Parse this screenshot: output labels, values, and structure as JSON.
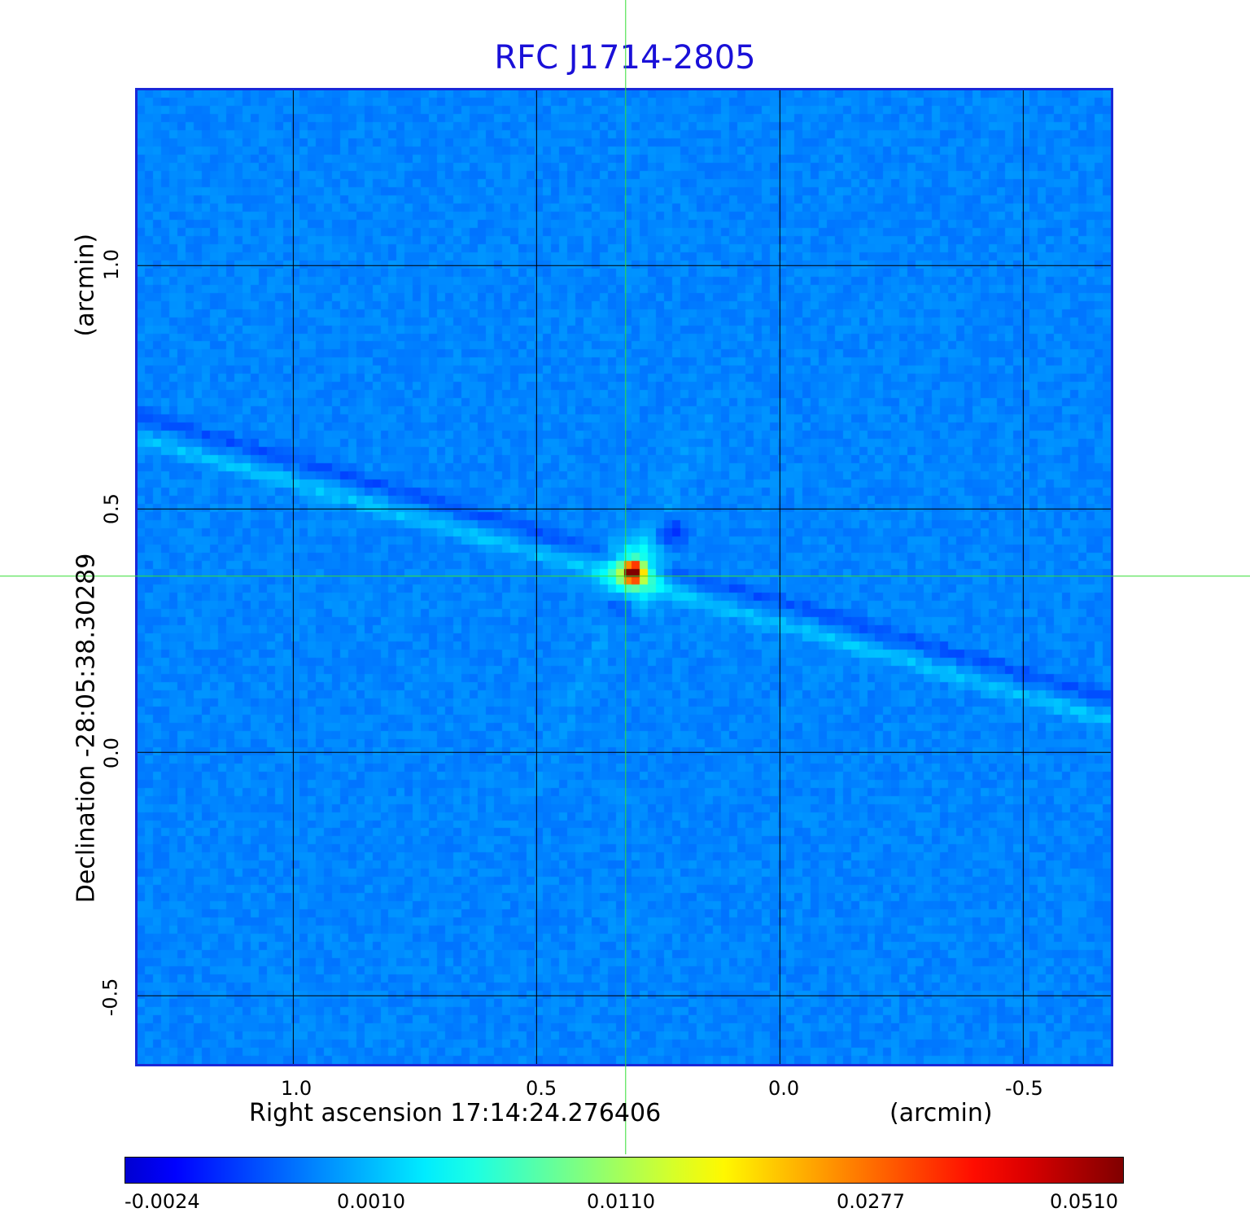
{
  "chart_data": {
    "type": "heatmap",
    "title": "RFC J1714-2805",
    "xlabel": "Right ascension  17:14:24.276406",
    "x_unit": "(arcmin)",
    "ylabel": "Declination  -28:05:38.30289",
    "y_unit": "(arcmin)",
    "x_ticks": [
      "1.0",
      "0.5",
      "0.0",
      "-0.5"
    ],
    "y_ticks": [
      "1.0",
      "0.5",
      "0.0",
      "-0.5"
    ],
    "xlim": [
      1.32,
      -0.68
    ],
    "ylim": [
      -0.64,
      1.36
    ],
    "grid": true,
    "crosshair": {
      "x": 0.317,
      "y": 0.362
    },
    "peak": {
      "x": 0.3,
      "y": 0.37,
      "value": 0.051
    },
    "colorbar": {
      "ticks": [
        "-0.0024",
        "0.0010",
        "0.0110",
        "0.0277",
        "0.0510"
      ],
      "colormap": "jet"
    }
  },
  "colors": {
    "title": "#1a10d8",
    "frame": "#1a28d8",
    "crosshair": "#33dd33",
    "background_map": "#1f6ef2"
  }
}
